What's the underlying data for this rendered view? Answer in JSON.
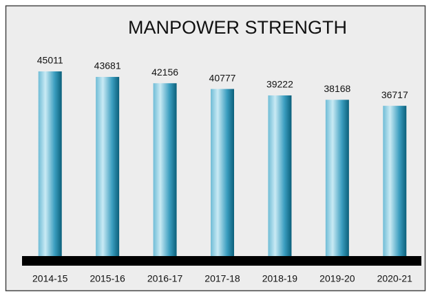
{
  "chart_data": {
    "type": "bar",
    "title": "MANPOWER STRENGTH",
    "categories": [
      "2014-15",
      "2015-16",
      "2016-17",
      "2017-18",
      "2018-19",
      "2019-20",
      "2020-21"
    ],
    "values": [
      45011,
      43681,
      42156,
      40777,
      39222,
      38168,
      36717
    ],
    "color": "#2a93b5"
  }
}
